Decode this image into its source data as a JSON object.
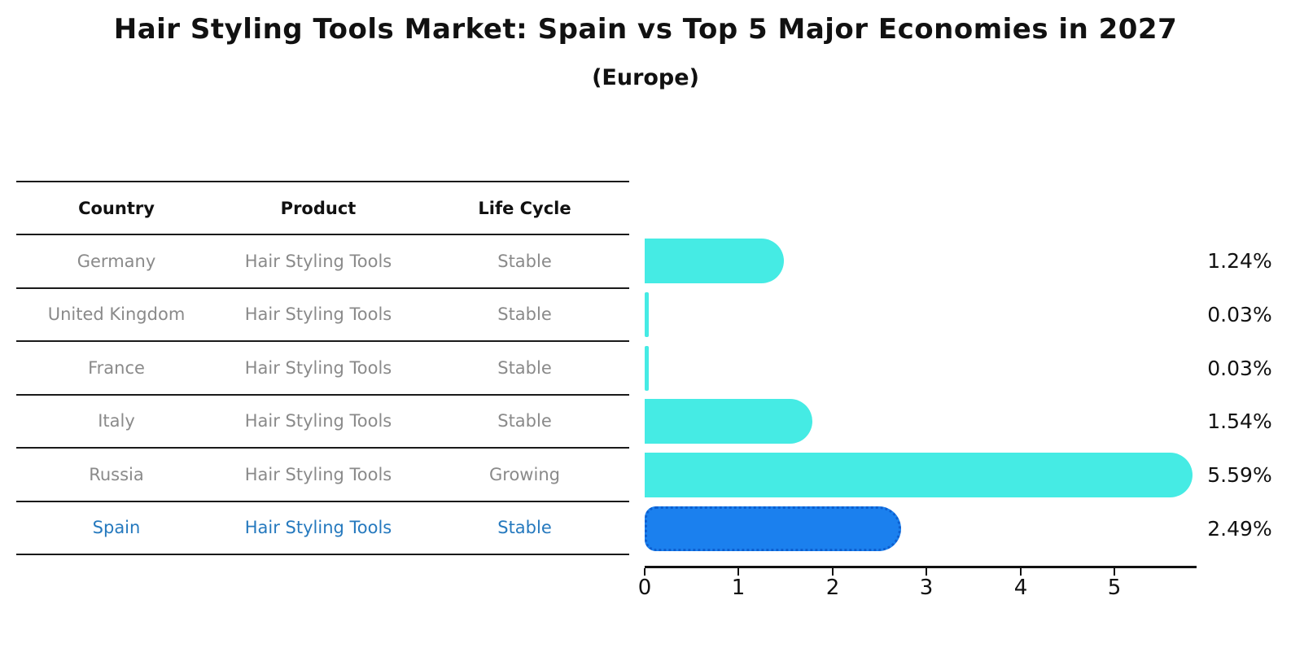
{
  "title": "Hair Styling Tools Market: Spain vs Top 5 Major Economies in 2027",
  "subtitle": "(Europe)",
  "table": {
    "headers": [
      "Country",
      "Product",
      "Life Cycle"
    ],
    "rows": [
      {
        "country": "Germany",
        "product": "Hair Styling Tools",
        "life_cycle": "Stable",
        "highlighted": false
      },
      {
        "country": "United Kingdom",
        "product": "Hair Styling Tools",
        "life_cycle": "Stable",
        "highlighted": false
      },
      {
        "country": "France",
        "product": "Hair Styling Tools",
        "life_cycle": "Stable",
        "highlighted": false
      },
      {
        "country": "Italy",
        "product": "Hair Styling Tools",
        "life_cycle": "Stable",
        "highlighted": false
      },
      {
        "country": "Russia",
        "product": "Hair Styling Tools",
        "life_cycle": "Growing",
        "highlighted": false
      },
      {
        "country": "Spain",
        "product": "Hair Styling Tools",
        "life_cycle": "Stable",
        "highlighted": true
      }
    ]
  },
  "chart_data": {
    "type": "bar",
    "orientation": "horizontal",
    "title": "Hair Styling Tools Market: Spain vs Top 5 Major Economies in 2027",
    "subtitle": "(Europe)",
    "categories": [
      "Germany",
      "United Kingdom",
      "France",
      "Italy",
      "Russia",
      "Spain"
    ],
    "values": [
      1.24,
      0.03,
      0.03,
      1.54,
      5.59,
      2.49
    ],
    "value_labels": [
      "1.24%",
      "0.03%",
      "0.03%",
      "1.54%",
      "5.59%",
      "2.49%"
    ],
    "highlight_index": 5,
    "x_ticks": [
      "0",
      "1",
      "2",
      "3",
      "4",
      "5"
    ],
    "xlim": [
      0,
      5.9
    ],
    "grid": false,
    "legend": false
  },
  "colors": {
    "bar": "#45EBE4",
    "highlight_bar": "#1B80EE",
    "highlight_bar_edge": "#0d5fd0",
    "highlight_text": "#2579be",
    "table_text": "#8a8a8a",
    "header_text": "#111111",
    "axis": "#111111"
  }
}
